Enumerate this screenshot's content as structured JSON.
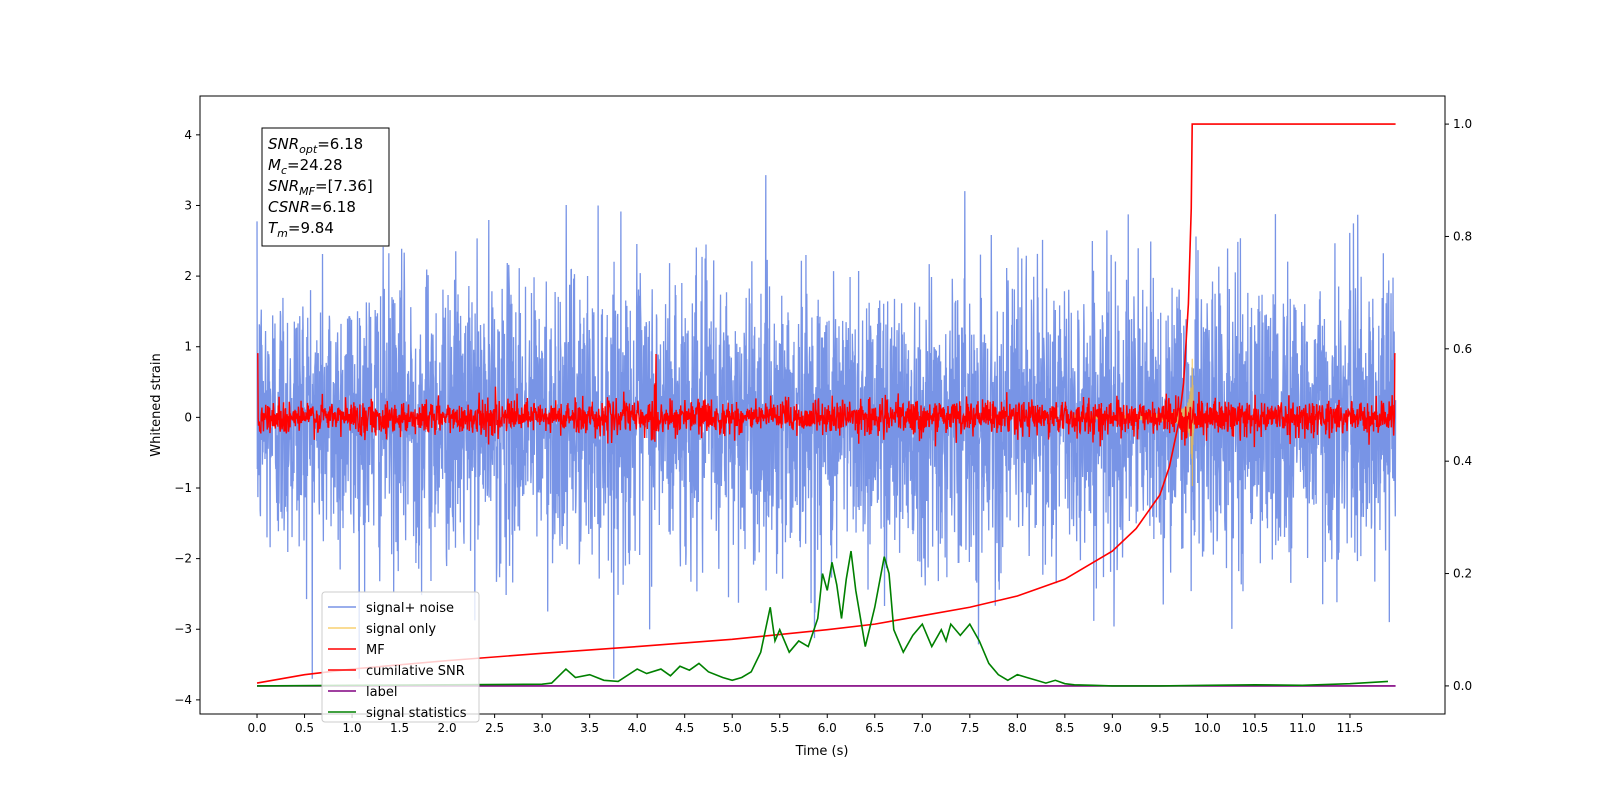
{
  "chart_data": {
    "type": "line",
    "title": "",
    "xlabel": "Time (s)",
    "ylabel": "Whitened strain",
    "y2label": "",
    "xlim": [
      -0.6,
      12.5
    ],
    "ylim": [
      -4.2,
      4.55
    ],
    "y2lim": [
      -0.05,
      1.05
    ],
    "grid": false,
    "legend_position": "lower-left",
    "x_ticks": [
      0.0,
      0.5,
      1.0,
      1.5,
      2.0,
      2.5,
      3.0,
      3.5,
      4.0,
      4.5,
      5.0,
      5.5,
      6.0,
      6.5,
      7.0,
      7.5,
      8.0,
      8.5,
      9.0,
      9.5,
      10.0,
      10.5,
      11.0,
      11.5
    ],
    "x_tick_labels": [
      "0.0",
      "0.5",
      "1.0",
      "1.5",
      "2.0",
      "2.5",
      "3.0",
      "3.5",
      "4.0",
      "4.5",
      "5.0",
      "5.5",
      "6.0",
      "6.5",
      "7.0",
      "7.5",
      "8.0",
      "8.5",
      "9.0",
      "9.5",
      "10.0",
      "10.5",
      "11.0",
      "11.5"
    ],
    "y_ticks": [
      -4,
      -3,
      -2,
      -1,
      0,
      1,
      2,
      3,
      4
    ],
    "y_tick_labels": [
      "−4",
      "−3",
      "−2",
      "−1",
      "0",
      "1",
      "2",
      "3",
      "4"
    ],
    "y2_ticks": [
      0.0,
      0.2,
      0.4,
      0.6,
      0.8,
      1.0
    ],
    "y2_tick_labels": [
      "0.0",
      "0.2",
      "0.4",
      "0.6",
      "0.8",
      "1.0"
    ],
    "annotation": {
      "lines": [
        {
          "sym": "SNR",
          "sub": "opt",
          "value": "=6.18"
        },
        {
          "sym": "M",
          "sub": "c",
          "value": "=24.28"
        },
        {
          "sym": "SNR",
          "sub": "MF",
          "value": "=[7.36]"
        },
        {
          "sym": "CSNR",
          "sub": "",
          "value": "=6.18"
        },
        {
          "sym": "T",
          "sub": "m",
          "value": "=9.84"
        }
      ]
    },
    "series": [
      {
        "name": "signal+ noise",
        "axis": "left",
        "color": "#7894e6",
        "generated": "noise",
        "x_range": [
          0,
          11.98
        ],
        "amplitude_std": 1.0,
        "range_approx": [
          -3.7,
          4.1
        ]
      },
      {
        "name": "signal only",
        "axis": "left",
        "color": "#f5c242",
        "generated": "chirp",
        "merger_time": 9.84,
        "peak_amplitude": 1.25
      },
      {
        "name": "MF",
        "axis": "left",
        "color": "#ff0000",
        "generated": "noise",
        "x_range": [
          0,
          11.98
        ],
        "amplitude_std": 0.12
      },
      {
        "name": "cumilative SNR",
        "axis": "right",
        "color": "#ff0000",
        "x": [
          0.0,
          0.5,
          1.0,
          2.0,
          3.0,
          4.0,
          5.0,
          6.0,
          6.5,
          7.0,
          7.5,
          8.0,
          8.5,
          9.0,
          9.25,
          9.5,
          9.6,
          9.7,
          9.75,
          9.8,
          9.83,
          9.84,
          10.5,
          11.98
        ],
        "y": [
          0.005,
          0.02,
          0.03,
          0.045,
          0.058,
          0.07,
          0.083,
          0.1,
          0.11,
          0.125,
          0.14,
          0.16,
          0.19,
          0.24,
          0.28,
          0.34,
          0.39,
          0.47,
          0.54,
          0.68,
          0.85,
          1.0,
          1.0,
          1.0
        ]
      },
      {
        "name": "label",
        "axis": "right",
        "color": "#800080",
        "x": [
          0.0,
          11.98
        ],
        "y": [
          0.0,
          0.0
        ]
      },
      {
        "name": "signal statistics",
        "axis": "right",
        "color": "#008000",
        "x": [
          0.0,
          1.0,
          2.0,
          3.0,
          3.1,
          3.25,
          3.35,
          3.5,
          3.65,
          3.8,
          4.0,
          4.1,
          4.25,
          4.35,
          4.45,
          4.55,
          4.65,
          4.75,
          4.9,
          5.0,
          5.1,
          5.2,
          5.3,
          5.4,
          5.45,
          5.5,
          5.6,
          5.7,
          5.8,
          5.9,
          5.95,
          6.0,
          6.05,
          6.1,
          6.15,
          6.2,
          6.25,
          6.3,
          6.35,
          6.4,
          6.5,
          6.6,
          6.65,
          6.7,
          6.8,
          6.9,
          7.0,
          7.1,
          7.2,
          7.25,
          7.3,
          7.4,
          7.45,
          7.5,
          7.6,
          7.7,
          7.8,
          7.9,
          8.0,
          8.1,
          8.2,
          8.3,
          8.4,
          8.5,
          8.6,
          8.8,
          9.0,
          9.5,
          10.0,
          10.5,
          11.0,
          11.5,
          11.9
        ],
        "y": [
          0.0,
          0.001,
          0.002,
          0.003,
          0.005,
          0.03,
          0.015,
          0.02,
          0.01,
          0.008,
          0.03,
          0.022,
          0.03,
          0.018,
          0.035,
          0.028,
          0.04,
          0.025,
          0.015,
          0.01,
          0.015,
          0.025,
          0.06,
          0.14,
          0.08,
          0.1,
          0.06,
          0.08,
          0.07,
          0.12,
          0.2,
          0.17,
          0.22,
          0.18,
          0.12,
          0.19,
          0.24,
          0.17,
          0.12,
          0.07,
          0.14,
          0.23,
          0.2,
          0.1,
          0.06,
          0.09,
          0.11,
          0.07,
          0.1,
          0.08,
          0.11,
          0.09,
          0.1,
          0.11,
          0.08,
          0.04,
          0.02,
          0.01,
          0.02,
          0.015,
          0.01,
          0.005,
          0.01,
          0.004,
          0.002,
          0.001,
          0.0,
          0.0,
          0.001,
          0.002,
          0.001,
          0.004,
          0.008
        ]
      }
    ]
  }
}
